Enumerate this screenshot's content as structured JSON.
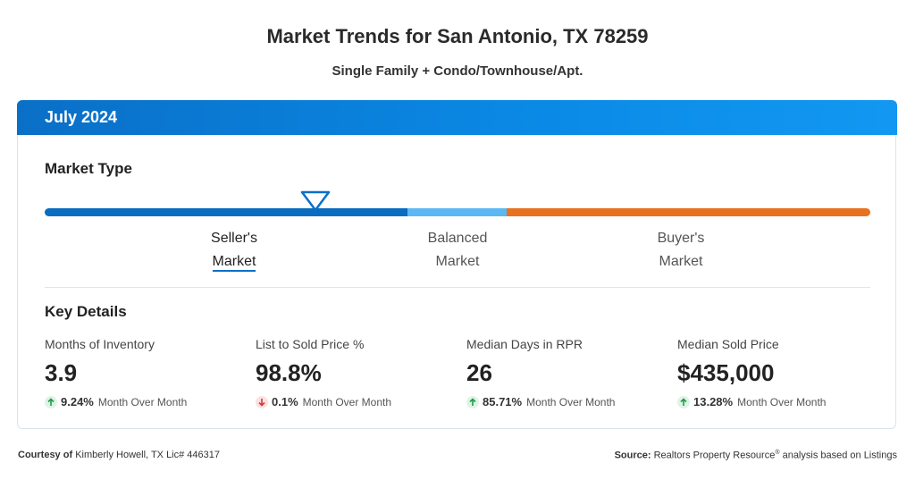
{
  "header": {
    "title": "Market Trends for San Antonio, TX 78259",
    "subtitle": "Single Family + Condo/Townhouse/Apt."
  },
  "card": {
    "period": "July 2024",
    "market_type": {
      "heading": "Market Type",
      "options": [
        {
          "line1": "Seller's",
          "line2": "Market"
        },
        {
          "line1": "Balanced",
          "line2": "Market"
        },
        {
          "line1": "Buyer's",
          "line2": "Market"
        }
      ]
    },
    "key_details": {
      "heading": "Key Details",
      "metrics": [
        {
          "label": "Months of Inventory",
          "value": "3.9",
          "change": "9.24%",
          "change_label": "Month Over Month"
        },
        {
          "label": "List to Sold Price %",
          "value": "98.8%",
          "change": "0.1%",
          "change_label": "Month Over Month"
        },
        {
          "label": "Median Days in RPR",
          "value": "26",
          "change": "85.71%",
          "change_label": "Month Over Month"
        },
        {
          "label": "Median Sold Price",
          "value": "$435,000",
          "change": "13.28%",
          "change_label": "Month Over Month"
        }
      ]
    }
  },
  "footer": {
    "courtesy_label": "Courtesy of",
    "courtesy": "Kimberly Howell, TX Lic# 446317",
    "source_label": "Source:",
    "source_name": "Realtors Property Resource",
    "source_mark": "®",
    "source_rest": "analysis based on Listings"
  }
}
